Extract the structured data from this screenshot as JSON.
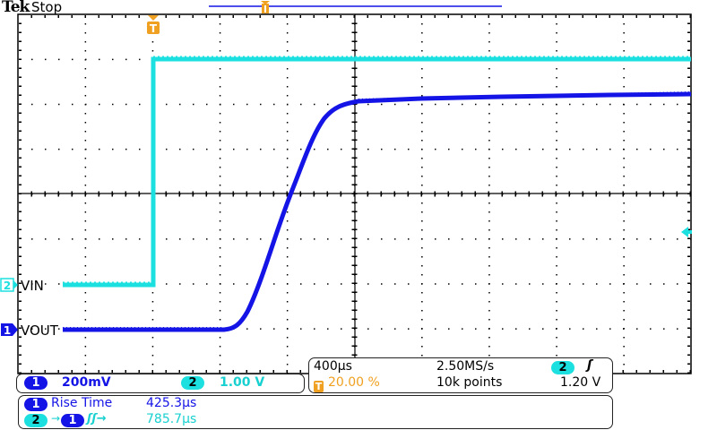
{
  "header": {
    "brand": "Tek",
    "acquisition_status": "Stop"
  },
  "graticule": {
    "h_divisions": 10,
    "v_divisions": 8
  },
  "channels": [
    {
      "id": "1",
      "label": "VOUT",
      "color": "#1414e6",
      "scale": "200mV"
    },
    {
      "id": "2",
      "label": "VIN",
      "color": "#1ce0e0",
      "scale": "1.00 V"
    }
  ],
  "channel_labels": {
    "ch1_marker": "1",
    "ch2_marker": "2",
    "ch1_name": "VOUT",
    "ch2_name": "VIN"
  },
  "vertical_panel": {
    "ch1_badge": "1",
    "ch1_scale": "200mV",
    "ch2_badge": "2",
    "ch2_scale": "1.00 V"
  },
  "horizontal_panel": {
    "timebase": "400µs",
    "sample_rate": "2.50MS/s",
    "trigger_source": "2",
    "trigger_slope_icon": "rising-edge",
    "trigger_slope_glyph": "ʃ",
    "trigger_position": "20.00 %",
    "trigger_marker": "T",
    "record_length": "10k points",
    "trigger_level": "1.20 V"
  },
  "measurements": [
    {
      "source": "1",
      "name": "Rise Time",
      "value": "425.3µs"
    },
    {
      "source": "2",
      "target": "1",
      "name": "Delay rise-rise",
      "arrow": "→",
      "edges": "ʃʃ→",
      "value": "785.7µs"
    }
  ],
  "colors": {
    "ch1": "#1414e6",
    "ch2": "#1ce0e0",
    "trigger": "#f0a020",
    "record_bar": "#1414e6"
  }
}
